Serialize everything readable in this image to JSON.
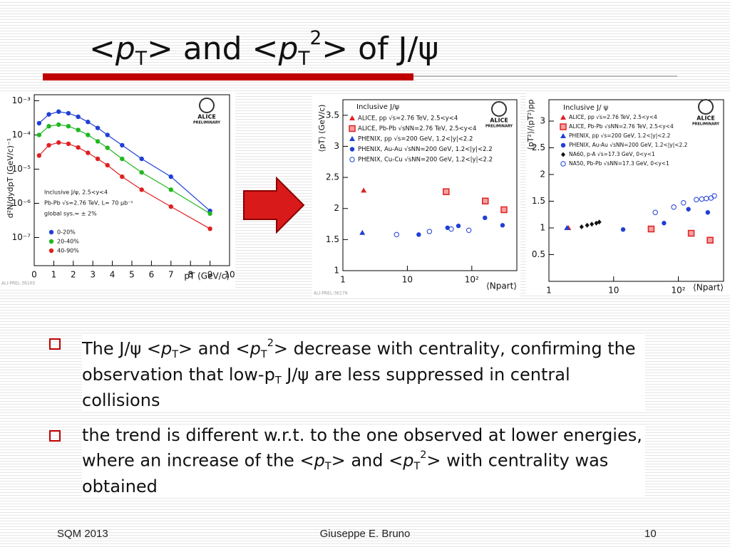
{
  "title": [
    "<",
    "p",
    "T",
    "> and <",
    "p",
    "T",
    "2",
    "> of J/ψ"
  ],
  "bullets": [
    [
      "The J/ψ <",
      "p",
      "T",
      "> and <",
      "p",
      "T",
      "2",
      "> decrease with centrality, confirming the observation that low-p",
      "T",
      " J/ψ are less suppressed in central collisions"
    ],
    [
      "the trend is different w.r.t. to the one observed at lower energies, where an increase of the <",
      "p",
      "T",
      "> and <",
      "p",
      "T",
      "2",
      "> with centrality was obtained"
    ]
  ],
  "footer": {
    "left": "SQM 2013",
    "center": "Giuseppe E. Bruno",
    "right": "10"
  },
  "chart_data": [
    {
      "type": "scatter",
      "ylabel": "d²N/dydpT (GeV/c)⁻¹",
      "xlabel": "pT (GeV/c)",
      "logo": [
        "ALICE",
        "PRELIMINARY"
      ],
      "figure_id": "ALI-PREL-36165",
      "annotations": [
        "Inclusive J/ψ, 2.5<y<4",
        "Pb-Pb √s=2.76 TeV, L= 70 µb⁻¹",
        "global sys.= ± 2%"
      ],
      "xlim": [
        0,
        10
      ],
      "xticks": [
        0,
        1,
        2,
        3,
        4,
        5,
        6,
        7,
        8,
        9,
        10
      ],
      "ylog": true,
      "ylim": [
        1.5e-08,
        0.0015
      ],
      "yticks": [
        {
          "value": 0.001,
          "label": "10⁻³"
        },
        {
          "value": 0.0001,
          "label": "10⁻⁴"
        },
        {
          "value": 1e-05,
          "label": "10⁻⁵"
        },
        {
          "value": 1e-06,
          "label": "10⁻⁶"
        },
        {
          "value": 1e-07,
          "label": "10⁻⁷"
        }
      ],
      "x": [
        0.25,
        0.75,
        1.25,
        1.75,
        2.25,
        2.75,
        3.25,
        3.75,
        4.5,
        5.5,
        7,
        9
      ],
      "line": true,
      "series": [
        {
          "name": "0-20%",
          "color": "#1f3fd6",
          "marker": "circle",
          "values": [
            0.00022,
            0.0004,
            0.00048,
            0.00043,
            0.00034,
            0.00024,
            0.00016,
            0.0001,
            5e-05,
            2e-05,
            6e-06,
            6e-07
          ]
        },
        {
          "name": "20-40%",
          "color": "#1fb81f",
          "marker": "circle",
          "values": [
            0.0001,
            0.00018,
            0.0002,
            0.00018,
            0.00014,
            0.0001,
            6.5e-05,
            4.2e-05,
            2e-05,
            8e-06,
            2.5e-06,
            5e-07
          ]
        },
        {
          "name": "40-90%",
          "color": "#e02020",
          "marker": "circle",
          "values": [
            2.5e-05,
            5e-05,
            6e-05,
            5.5e-05,
            4.3e-05,
            3e-05,
            2e-05,
            1.3e-05,
            6e-06,
            2.5e-06,
            8e-07,
            1.8e-07
          ]
        }
      ]
    },
    {
      "type": "scatter",
      "ylabel": "⟨pT⟩ (GeV/c)",
      "xlabel": "⟨Npart⟩",
      "logo": [
        "ALICE",
        "PRELIMINARY"
      ],
      "figure_id": "ALI-PREL-36179",
      "legend_title": "Inclusive J/ψ",
      "xlog": true,
      "xlim": [
        1,
        500
      ],
      "xticks": [
        1,
        10,
        {
          "value": 100,
          "label": "10²"
        }
      ],
      "ylim": [
        1,
        3.75
      ],
      "yticks": [
        1,
        1.5,
        2,
        2.5,
        3,
        3.5
      ],
      "series": [
        {
          "name": "ALICE, pp √s=2.76 TeV, 2.5<y<4",
          "color": "#e02020",
          "marker": "triangle",
          "x": [
            2.1
          ],
          "values": [
            2.29
          ]
        },
        {
          "name": "ALICE, Pb-Pb √sNN=2.76 TeV, 2.5<y<4",
          "color": "#e02020",
          "marker": "square",
          "x": [
            40,
            162,
            316
          ],
          "values": [
            2.27,
            2.12,
            1.98
          ]
        },
        {
          "name": "PHENIX, pp √s=200 GeV, 1.2<|y|<2.2",
          "color": "#1f3fd6",
          "marker": "triangle",
          "x": [
            2
          ],
          "values": [
            1.61
          ]
        },
        {
          "name": "PHENIX, Au-Au √sNN=200 GeV, 1.2<|y|<2.2",
          "color": "#1f3fd6",
          "marker": "circle",
          "x": [
            15,
            42,
            62,
            160,
            300
          ],
          "values": [
            1.58,
            1.69,
            1.72,
            1.85,
            1.73
          ]
        },
        {
          "name": "PHENIX, Cu-Cu √sNN=200 GeV, 1.2<|y|<2.2",
          "color": "#1f3fd6",
          "marker": "open-circle",
          "x": [
            6.8,
            22,
            48,
            90
          ],
          "values": [
            1.58,
            1.63,
            1.67,
            1.65
          ]
        }
      ]
    },
    {
      "type": "scatter",
      "ylabel": "⟨pT²⟩/⟨pT²⟩pp",
      "xlabel": "⟨Npart⟩",
      "logo": [
        "ALICE",
        "PRELIMINARY"
      ],
      "legend_title": "Inclusive J/ ψ",
      "xlog": true,
      "xlim": [
        1,
        500
      ],
      "xticks": [
        1,
        10,
        {
          "value": 100,
          "label": "10²"
        }
      ],
      "ylim": [
        0,
        3.4
      ],
      "yticks": [
        0.5,
        1,
        1.5,
        2,
        2.5,
        3
      ],
      "series": [
        {
          "name": "ALICE, pp √s=2.76 TeV, 2.5<y<4",
          "color": "#e02020",
          "marker": "triangle",
          "x": [
            2
          ],
          "values": [
            1.0
          ]
        },
        {
          "name": "ALICE, Pb-Pb √sNN=2.76 TeV, 2.5<y<4",
          "color": "#e02020",
          "marker": "square",
          "x": [
            38,
            158,
            310
          ],
          "values": [
            0.98,
            0.9,
            0.77
          ]
        },
        {
          "name": "PHENIX, pp √s=200 GeV, 1.2<|y|<2.2",
          "color": "#1f3fd6",
          "marker": "triangle",
          "x": [
            1.9
          ],
          "values": [
            1.0
          ]
        },
        {
          "name": "PHENIX, Au-Au √sNN=200 GeV, 1.2<|y|<2.2",
          "color": "#1f3fd6",
          "marker": "circle",
          "x": [
            14,
            60,
            143,
            285
          ],
          "values": [
            0.97,
            1.09,
            1.35,
            1.29
          ]
        },
        {
          "name": "NA60, p-A √s=17.3 GeV, 0<y<1",
          "color": "#111111",
          "marker": "diamond",
          "x": [
            3.2,
            3.9,
            4.6,
            5.4,
            6
          ],
          "values": [
            1.02,
            1.05,
            1.07,
            1.09,
            1.11
          ]
        },
        {
          "name": "NA50, Pb-Pb √sNN=17.3 GeV, 0<y<1",
          "color": "#1f3fd6",
          "marker": "open-circle",
          "x": [
            44,
            85,
            120,
            190,
            230,
            270,
            320,
            360
          ],
          "values": [
            1.29,
            1.39,
            1.47,
            1.53,
            1.54,
            1.55,
            1.56,
            1.6
          ]
        }
      ]
    }
  ]
}
